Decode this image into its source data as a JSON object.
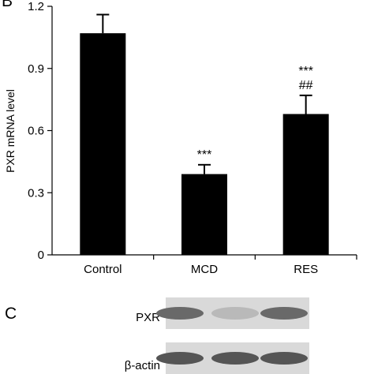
{
  "panels": {
    "chart_letter": "B",
    "blot_letter": "C"
  },
  "chart_data": {
    "type": "bar",
    "title": "",
    "xlabel": "",
    "ylabel": "PXR mRNA level",
    "ylim": [
      0,
      1.2
    ],
    "yticks": [
      0,
      0.3,
      0.6,
      0.9,
      1.2
    ],
    "ytick_labels": [
      "0",
      "0.3",
      "0.6",
      "0.9",
      "1.2"
    ],
    "categories": [
      "Control",
      "MCD",
      "RES"
    ],
    "values": [
      1.07,
      0.39,
      0.68
    ],
    "errors": [
      0.09,
      0.045,
      0.09
    ],
    "annotations": [
      {
        "category": "MCD",
        "lines": [
          "***"
        ]
      },
      {
        "category": "RES",
        "lines": [
          "***",
          "##"
        ]
      }
    ],
    "bar_color": "#000000",
    "grid": false
  },
  "blot": {
    "rows": [
      {
        "label": "PXR",
        "band_intensity": [
          0.75,
          0.35,
          0.75
        ]
      },
      {
        "label": "β-actin",
        "band_intensity": [
          0.85,
          0.85,
          0.85
        ]
      }
    ],
    "background": "#d9d9d9"
  }
}
